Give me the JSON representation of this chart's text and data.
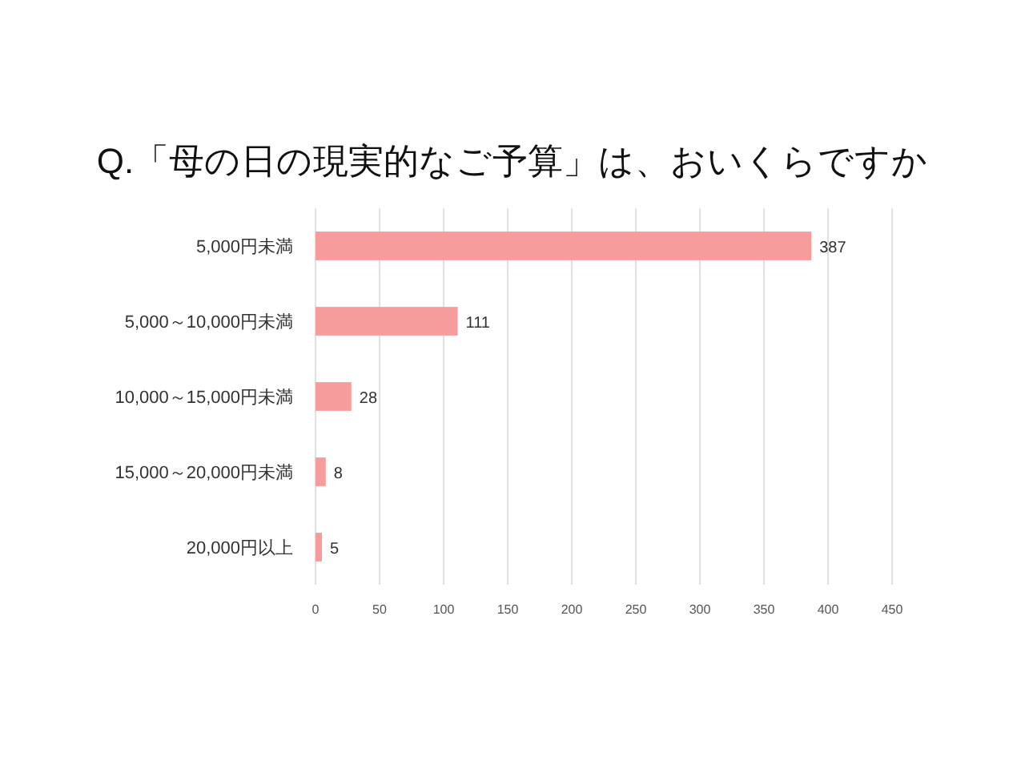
{
  "chart_data": {
    "type": "bar",
    "orientation": "horizontal",
    "title": "Q.「母の日の現実的なご予算」は、おいくらですか",
    "categories": [
      "5,000円未満",
      "5,000～10,000円未満",
      "10,000～15,000円未満",
      "15,000～20,000円未満",
      "20,000円以上"
    ],
    "values": [
      387,
      111,
      28,
      8,
      5
    ],
    "color": "#f79c9c",
    "xlim": [
      0,
      450
    ],
    "xticks": [
      0,
      50,
      100,
      150,
      200,
      250,
      300,
      350,
      400,
      450
    ],
    "grid": "x",
    "data_labels": true
  }
}
